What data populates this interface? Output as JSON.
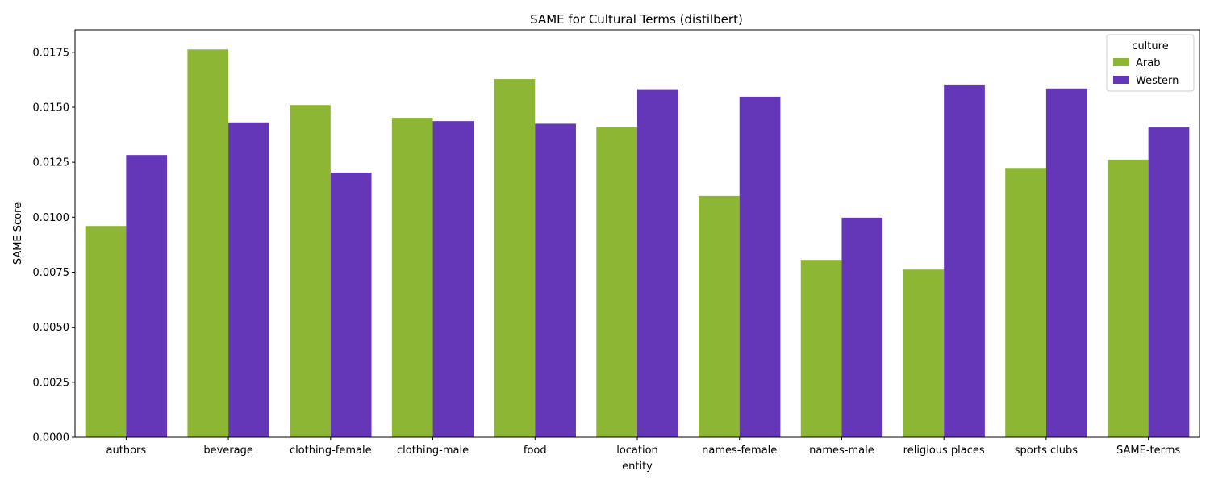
{
  "chart_data": {
    "type": "bar",
    "title": "SAME for Cultural Terms (distilbert)",
    "xlabel": "entity",
    "ylabel": "SAME Score",
    "categories": [
      "authors",
      "beverage",
      "clothing-female",
      "clothing-male",
      "food",
      "location",
      "names-female",
      "names-male",
      "religious places",
      "sports clubs",
      "SAME-terms"
    ],
    "series": [
      {
        "name": "Arab",
        "color": "#8db634",
        "values": [
          0.0096,
          0.01763,
          0.0151,
          0.01452,
          0.01628,
          0.01411,
          0.01097,
          0.00806,
          0.00762,
          0.01224,
          0.01262
        ]
      },
      {
        "name": "Western",
        "color": "#6337b7",
        "values": [
          0.01283,
          0.01431,
          0.01203,
          0.01437,
          0.01425,
          0.01582,
          0.01548,
          0.00998,
          0.01603,
          0.01585,
          0.01408
        ]
      }
    ],
    "ylim": [
      0,
      0.01852
    ],
    "yticks": [
      0.0,
      0.0025,
      0.005,
      0.0075,
      0.01,
      0.0125,
      0.015,
      0.0175
    ],
    "ytick_labels": [
      "0.0000",
      "0.0025",
      "0.0050",
      "0.0075",
      "0.0100",
      "0.0125",
      "0.0150",
      "0.0175"
    ],
    "grid": false,
    "legend": {
      "title": "culture",
      "placement": "top-right"
    }
  }
}
